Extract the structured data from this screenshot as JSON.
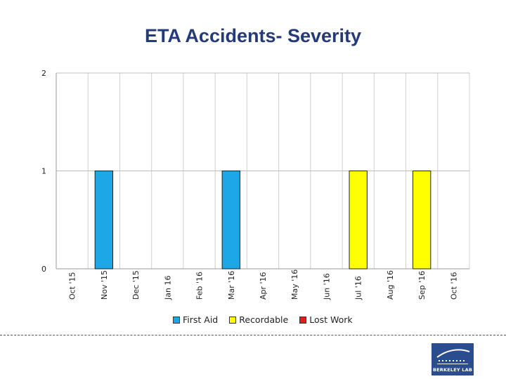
{
  "title": "ETA Accidents-  Severity",
  "chart_data": {
    "type": "bar",
    "stacked": true,
    "title": "ETA Accidents-  Severity",
    "xlabel": "",
    "ylabel": "",
    "ylim": [
      0,
      2
    ],
    "yticks": [
      0,
      1,
      2
    ],
    "categories": [
      "Oct '15",
      "Nov '15",
      "Dec '15",
      "Jan 16",
      "Feb '16",
      "Mar '16",
      "Apr '16",
      "May '16",
      "Jun '16",
      "Jul '16",
      "Aug '16",
      "Sep '16",
      "Oct '16"
    ],
    "series": [
      {
        "name": "First Aid",
        "color": "#1ea7e6",
        "values": [
          0,
          1,
          0,
          0,
          0,
          1,
          0,
          0,
          0,
          0,
          0,
          0,
          0
        ]
      },
      {
        "name": "Recordable",
        "color": "#ffff00",
        "values": [
          0,
          0,
          0,
          0,
          0,
          0,
          0,
          0,
          0,
          1,
          0,
          1,
          0
        ]
      },
      {
        "name": "Lost Work",
        "color": "#e01e1e",
        "values": [
          0,
          0,
          0,
          0,
          0,
          0,
          0,
          0,
          0,
          0,
          0,
          0,
          0
        ]
      }
    ],
    "gridlines": true,
    "legend": "bottom"
  },
  "logo": {
    "text": "BERKELEY LAB",
    "icon": "berkeley-lab-icon"
  }
}
